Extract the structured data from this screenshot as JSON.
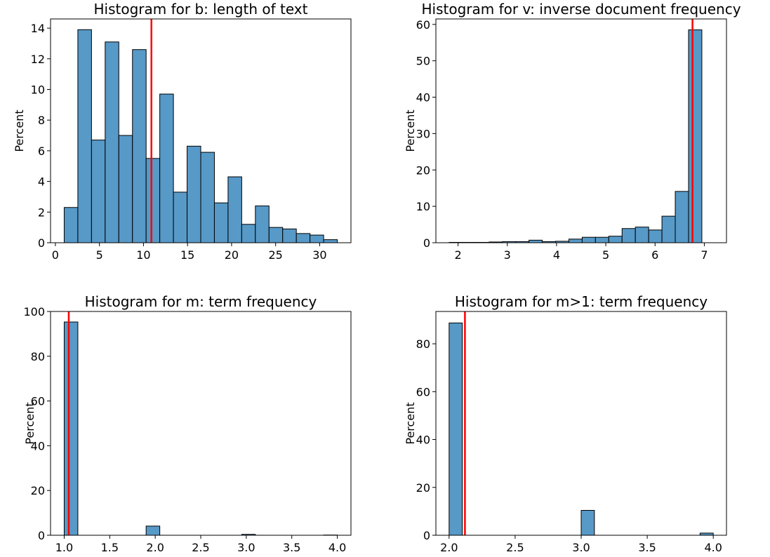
{
  "chart_data": [
    {
      "type": "bar",
      "title": "Histogram for b: length of text",
      "xlabel": "",
      "ylabel": "Percent",
      "xlim": [
        -0.55,
        33.55
      ],
      "ylim": [
        0,
        14.6
      ],
      "xticks": [
        0,
        5,
        10,
        15,
        20,
        25,
        30
      ],
      "yticks": [
        0,
        2,
        4,
        6,
        8,
        10,
        12,
        14
      ],
      "bin_edges": [
        1.0,
        2.55,
        4.1,
        5.65,
        7.2,
        8.75,
        10.3,
        11.85,
        13.4,
        14.95,
        16.5,
        18.05,
        19.6,
        21.15,
        22.7,
        24.25,
        25.8,
        27.35,
        28.9,
        30.45,
        32.0
      ],
      "values": [
        2.3,
        13.9,
        6.7,
        13.1,
        7.0,
        12.6,
        5.5,
        9.7,
        3.3,
        6.3,
        5.9,
        2.6,
        4.3,
        1.2,
        2.4,
        1.0,
        0.9,
        0.6,
        0.5,
        0.2
      ],
      "vline": 10.9,
      "bar_color": "#5799c7",
      "vline_color": "#ff0000",
      "grid": false
    },
    {
      "type": "bar",
      "title": "Histogram for v: inverse document frequency",
      "xlabel": "",
      "ylabel": "Percent",
      "xlim": [
        1.55,
        7.45
      ],
      "ylim": [
        0,
        61.5
      ],
      "xticks": [
        2,
        3,
        4,
        5,
        6,
        7
      ],
      "yticks": [
        0,
        10,
        20,
        30,
        40,
        50,
        60
      ],
      "bin_edges": [
        1.82,
        2.09,
        2.36,
        2.63,
        2.9,
        3.17,
        3.44,
        3.71,
        3.98,
        4.25,
        4.52,
        4.79,
        5.06,
        5.33,
        5.6,
        5.87,
        6.14,
        6.41,
        6.68,
        6.95,
        7.22
      ],
      "values": [
        0.1,
        0.1,
        0.1,
        0.2,
        0.3,
        0.3,
        0.7,
        0.3,
        0.4,
        1.0,
        1.5,
        1.5,
        1.8,
        3.9,
        4.3,
        3.5,
        7.3,
        14.1,
        58.5,
        0
      ],
      "vline": 6.76,
      "bar_color": "#5799c7",
      "vline_color": "#ff0000",
      "grid": false
    },
    {
      "type": "bar",
      "title": "Histogram for m: term frequency",
      "xlabel": "",
      "ylabel": "Percent",
      "xlim": [
        0.85,
        4.15
      ],
      "ylim": [
        0,
        100
      ],
      "xticks": [
        1.0,
        1.5,
        2.0,
        2.5,
        3.0,
        3.5,
        4.0
      ],
      "xtick_labels": [
        "1.0",
        "1.5",
        "2.0",
        "2.5",
        "3.0",
        "3.5",
        "4.0"
      ],
      "yticks": [
        0,
        20,
        40,
        60,
        80,
        100
      ],
      "bin_edges": [
        1.0,
        1.15,
        1.3,
        1.45,
        1.6,
        1.75,
        1.9,
        2.05,
        2.2,
        2.35,
        2.5,
        2.65,
        2.8,
        2.95,
        3.1,
        3.25,
        3.4,
        3.55,
        3.7,
        3.85,
        4.0
      ],
      "values": [
        95.3,
        0,
        0,
        0,
        0,
        0,
        4.1,
        0,
        0,
        0,
        0,
        0,
        0,
        0.4,
        0,
        0,
        0,
        0,
        0,
        0.1
      ],
      "vline": 1.05,
      "bar_color": "#5799c7",
      "vline_color": "#ff0000",
      "grid": false
    },
    {
      "type": "bar",
      "title": "Histogram for m>1: term frequency",
      "xlabel": "",
      "ylabel": "Percent",
      "xlim": [
        1.9,
        4.1
      ],
      "ylim": [
        0,
        93.5
      ],
      "xticks": [
        2.0,
        2.5,
        3.0,
        3.5,
        4.0
      ],
      "xtick_labels": [
        "2.0",
        "2.5",
        "3.0",
        "3.5",
        "4.0"
      ],
      "yticks": [
        0,
        20,
        40,
        60,
        80
      ],
      "bin_edges": [
        2.0,
        2.1,
        2.2,
        2.3,
        2.4,
        2.5,
        2.6,
        2.7,
        2.8,
        2.9,
        3.0,
        3.1,
        3.2,
        3.3,
        3.4,
        3.5,
        3.6,
        3.7,
        3.8,
        3.9,
        4.0
      ],
      "values": [
        88.7,
        0,
        0,
        0,
        0,
        0,
        0,
        0,
        0,
        0,
        10.4,
        0,
        0,
        0,
        0,
        0,
        0,
        0,
        0,
        0.9
      ],
      "vline": 2.12,
      "bar_color": "#5799c7",
      "vline_color": "#ff0000",
      "grid": false
    }
  ]
}
